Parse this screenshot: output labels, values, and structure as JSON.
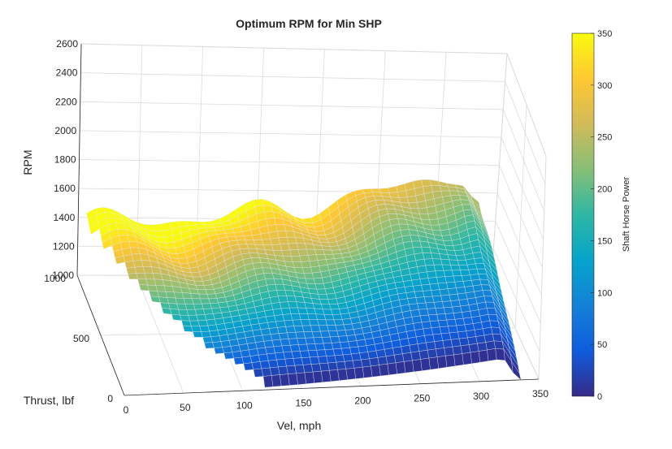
{
  "chart_data": {
    "type": "surface",
    "title": "Optimum RPM for Min SHP",
    "xlabel": "Vel, mph",
    "ylabel": "Thrust, lbf",
    "zlabel": "RPM",
    "xlim": [
      0,
      350
    ],
    "ylim": [
      0,
      1000
    ],
    "zlim": [
      1000,
      2600
    ],
    "x_ticks": [
      "0",
      "50",
      "100",
      "150",
      "200",
      "250",
      "300",
      "350"
    ],
    "y_ticks": [
      "0",
      "500",
      "1000"
    ],
    "z_ticks": [
      "1000",
      "1200",
      "1400",
      "1600",
      "1800",
      "2000",
      "2200",
      "2400",
      "2600"
    ],
    "colorbar": {
      "label": "Shaft Horse Power",
      "range": [
        0,
        350
      ],
      "ticks": [
        "0",
        "50",
        "100",
        "150",
        "200",
        "250",
        "300",
        "350"
      ],
      "colormap": "parula"
    },
    "colormap_stops": [
      "#352a87",
      "#0f5cdd",
      "#1481d6",
      "#06a4ca",
      "#2eb7a4",
      "#87bf77",
      "#d1bb59",
      "#fec832",
      "#f9fb0e"
    ],
    "surface_rpm_at_thrust_0": [
      {
        "vel": 80,
        "rpm": 1000
      },
      {
        "vel": 150,
        "rpm": 1150
      },
      {
        "vel": 200,
        "rpm": 1300
      },
      {
        "vel": 250,
        "rpm": 1480
      },
      {
        "vel": 300,
        "rpm": 1720
      },
      {
        "vel": 320,
        "rpm": 1700
      },
      {
        "vel": 335,
        "rpm": 1100
      }
    ],
    "surface_rpm_at_thrust_1000": [
      {
        "vel": 0,
        "rpm": 1400
      },
      {
        "vel": 100,
        "rpm": 1440
      },
      {
        "vel": 200,
        "rpm": 1500
      },
      {
        "vel": 300,
        "rpm": 1950
      },
      {
        "vel": 350,
        "rpm": 1650
      }
    ],
    "grid": true
  }
}
